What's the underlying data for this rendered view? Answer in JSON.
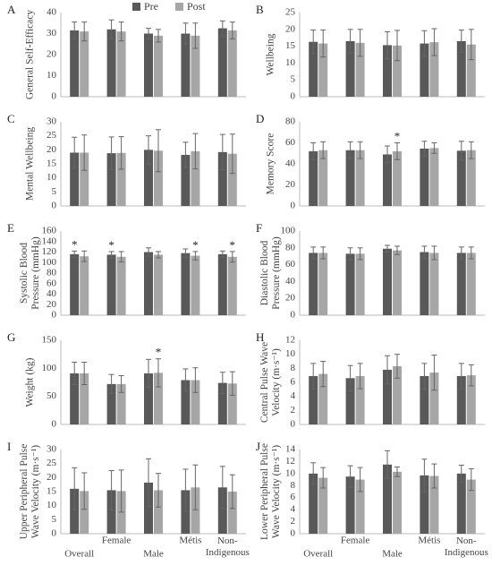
{
  "chart_data": [
    {
      "type": "bar",
      "panel": "A",
      "ylabel": [
        "General Self-Efficacy"
      ],
      "categories": [
        null,
        null,
        null,
        null,
        null
      ],
      "series": [
        {
          "name": "Pre",
          "color": "#595959",
          "values": [
            31.5,
            32,
            30,
            30,
            32.5
          ],
          "errors": [
            4,
            4.5,
            2.5,
            5,
            3.5
          ]
        },
        {
          "name": "Post",
          "color": "#a6a6a6",
          "values": [
            31,
            31,
            29,
            29,
            31.5
          ],
          "errors": [
            4.5,
            4.5,
            3,
            6,
            4
          ]
        }
      ],
      "ylim": [
        0,
        40
      ],
      "yticks": [
        0,
        10,
        20,
        30,
        40
      ],
      "grid": false
    },
    {
      "type": "bar",
      "panel": "B",
      "ylabel": [
        "Wellbeing"
      ],
      "categories": [
        null,
        null,
        null,
        null,
        null
      ],
      "series": [
        {
          "color": "#595959",
          "values": [
            16.3,
            16.5,
            15.3,
            15.8,
            16.5
          ],
          "errors": [
            3.5,
            3.5,
            4,
            3.8,
            3.3
          ]
        },
        {
          "color": "#a6a6a6",
          "values": [
            15.8,
            16,
            15.2,
            16.2,
            15.5
          ],
          "errors": [
            4,
            4,
            4.5,
            4,
            4.5
          ]
        }
      ],
      "ylim": [
        0,
        25
      ],
      "yticks": [
        0,
        5,
        10,
        15,
        20,
        25
      ],
      "grid": false
    },
    {
      "type": "bar",
      "panel": "C",
      "ylabel": [
        "Mental Wellbeing"
      ],
      "categories": [
        null,
        null,
        null,
        null,
        null
      ],
      "series": [
        {
          "color": "#595959",
          "values": [
            19,
            18.8,
            20,
            18.2,
            19.2
          ],
          "errors": [
            5.5,
            5.8,
            5,
            4.5,
            6.3
          ]
        },
        {
          "color": "#a6a6a6",
          "values": [
            19,
            18.9,
            19.7,
            19.5,
            18.6
          ],
          "errors": [
            6.3,
            5.8,
            7.5,
            6.3,
            7
          ]
        }
      ],
      "ylim": [
        0,
        30
      ],
      "yticks": [
        0,
        5,
        10,
        15,
        20,
        25,
        30
      ],
      "grid": false
    },
    {
      "type": "bar",
      "panel": "D",
      "ylabel": [
        "Memory Score"
      ],
      "categories": [
        null,
        null,
        null,
        null,
        null
      ],
      "series": [
        {
          "color": "#595959",
          "values": [
            52,
            53,
            49,
            54.5,
            52.5
          ],
          "errors": [
            8,
            8,
            8,
            7,
            9
          ]
        },
        {
          "color": "#a6a6a6",
          "values": [
            53,
            53,
            52,
            55,
            53
          ],
          "errors": [
            8,
            8,
            8,
            5,
            8
          ],
          "annotations": [
            null,
            null,
            "*",
            null,
            null
          ]
        }
      ],
      "ylim": [
        0,
        80
      ],
      "yticks": [
        0,
        20,
        40,
        60,
        80
      ],
      "grid": false
    },
    {
      "type": "bar",
      "panel": "E",
      "ylabel": [
        "Systolic Blood",
        "Pressure (mmHg)"
      ],
      "categories": [
        null,
        null,
        null,
        null,
        null
      ],
      "series": [
        {
          "color": "#595959",
          "values": [
            116,
            115,
            120,
            118,
            116
          ],
          "errors": [
            6,
            6,
            8,
            8,
            6
          ],
          "annotations": [
            "*",
            "*",
            null,
            null,
            null
          ]
        },
        {
          "color": "#a6a6a6",
          "values": [
            112,
            111,
            115,
            113,
            111
          ],
          "errors": [
            10,
            10,
            6,
            8,
            10
          ],
          "annotations": [
            null,
            null,
            null,
            "*",
            "*"
          ]
        }
      ],
      "ylim": [
        0,
        160
      ],
      "yticks": [
        0,
        20,
        40,
        60,
        80,
        100,
        120,
        140,
        160
      ],
      "grid": false
    },
    {
      "type": "bar",
      "panel": "F",
      "ylabel": [
        "Diastolic Blood",
        "Pressure (mmHg)"
      ],
      "categories": [
        null,
        null,
        null,
        null,
        null
      ],
      "series": [
        {
          "color": "#595959",
          "values": [
            74,
            73,
            79,
            75,
            74
          ],
          "errors": [
            7,
            7,
            4,
            7,
            7
          ]
        },
        {
          "color": "#a6a6a6",
          "values": [
            74,
            73,
            77,
            74,
            74
          ],
          "errors": [
            7,
            7,
            5,
            8,
            7
          ]
        }
      ],
      "ylim": [
        0,
        100
      ],
      "yticks": [
        0,
        20,
        40,
        60,
        80,
        100
      ],
      "grid": false
    },
    {
      "type": "bar",
      "panel": "G",
      "ylabel": [
        "Weight (kg)"
      ],
      "categories": [
        null,
        null,
        null,
        null,
        null
      ],
      "series": [
        {
          "color": "#595959",
          "values": [
            91,
            72,
            91,
            79,
            74
          ],
          "errors": [
            20,
            17,
            25,
            20,
            19
          ]
        },
        {
          "color": "#a6a6a6",
          "values": [
            91,
            72,
            92,
            79,
            73
          ],
          "errors": [
            20,
            15,
            25,
            22,
            21
          ],
          "annotations": [
            null,
            null,
            "*",
            null,
            null
          ]
        }
      ],
      "ylim": [
        0,
        150
      ],
      "yticks": [
        0,
        50,
        100,
        150
      ],
      "grid": false
    },
    {
      "type": "bar",
      "panel": "H",
      "ylabel": [
        "Central Pulse Wave",
        "Velocity (m·s⁻¹)"
      ],
      "categories": [
        null,
        null,
        null,
        null,
        null
      ],
      "series": [
        {
          "color": "#595959",
          "values": [
            6.9,
            6.6,
            7.8,
            6.9,
            6.9
          ],
          "errors": [
            1.8,
            1.8,
            2,
            1.8,
            1.8
          ]
        },
        {
          "color": "#a6a6a6",
          "values": [
            7.2,
            6.9,
            8.3,
            7.4,
            7
          ],
          "errors": [
            1.8,
            1.8,
            1.7,
            2.5,
            1.5
          ]
        }
      ],
      "ylim": [
        0,
        12
      ],
      "yticks": [
        0,
        2,
        4,
        6,
        8,
        10,
        12
      ],
      "grid": false
    },
    {
      "type": "bar",
      "panel": "I",
      "ylabel": [
        "Upper Peripheral Pulse",
        "Wave Velocity (m·s⁻¹)"
      ],
      "categories": [
        "Overall",
        "Female",
        "Male",
        "Métis",
        "Non-Indigenous"
      ],
      "series": [
        {
          "color": "#595959",
          "values": [
            16,
            15.5,
            18.2,
            15.5,
            16.5
          ],
          "errors": [
            7.5,
            7,
            8.5,
            7.5,
            7.5
          ]
        },
        {
          "color": "#a6a6a6",
          "values": [
            15.2,
            15.2,
            15.5,
            16.5,
            15
          ],
          "errors": [
            6.5,
            7.5,
            6,
            8,
            6
          ]
        }
      ],
      "ylim": [
        0,
        30
      ],
      "yticks": [
        0,
        5,
        10,
        15,
        20,
        25,
        30
      ],
      "grid": false
    },
    {
      "type": "bar",
      "panel": "J",
      "ylabel": [
        "Lower Peripheral Pulse",
        "Wave Velocity (m·s⁻¹)"
      ],
      "categories": [
        "Overall",
        "Female",
        "Male",
        "Métis",
        "Non-Indigenous"
      ],
      "series": [
        {
          "color": "#595959",
          "values": [
            10,
            9.5,
            11.5,
            9.7,
            10
          ],
          "errors": [
            1.8,
            1.8,
            2.3,
            2.7,
            1.4
          ]
        },
        {
          "color": "#a6a6a6",
          "values": [
            9.3,
            9,
            10.3,
            9.6,
            9
          ],
          "errors": [
            1.7,
            2,
            0.8,
            2,
            1.8
          ]
        }
      ],
      "ylim": [
        0,
        14
      ],
      "yticks": [
        0,
        2,
        4,
        6,
        8,
        10,
        12,
        14
      ],
      "grid": false
    }
  ]
}
